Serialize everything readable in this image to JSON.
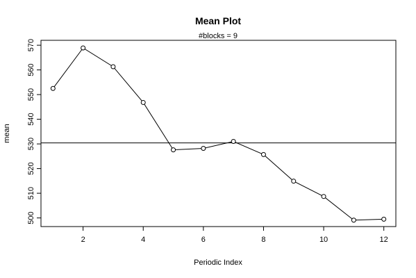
{
  "chart_data": {
    "type": "line",
    "title": "Mean Plot",
    "subtitle": "#blocks =  9",
    "xlabel": "Periodic Index",
    "ylabel": "mean",
    "xlim": [
      0.6,
      12.4
    ],
    "ylim": [
      496.5,
      572.0
    ],
    "x_ticks": [
      2,
      4,
      6,
      8,
      10,
      12
    ],
    "y_ticks": [
      500,
      510,
      520,
      530,
      540,
      550,
      560,
      570
    ],
    "x": [
      1,
      2,
      3,
      4,
      5,
      6,
      7,
      8,
      9,
      10,
      11,
      12
    ],
    "values": [
      552.5,
      568.9,
      561.3,
      546.8,
      527.6,
      528.2,
      531.0,
      525.7,
      514.9,
      508.7,
      499.1,
      499.5
    ],
    "reference_line": 530.4,
    "marker": "open-circle",
    "grid": false
  }
}
